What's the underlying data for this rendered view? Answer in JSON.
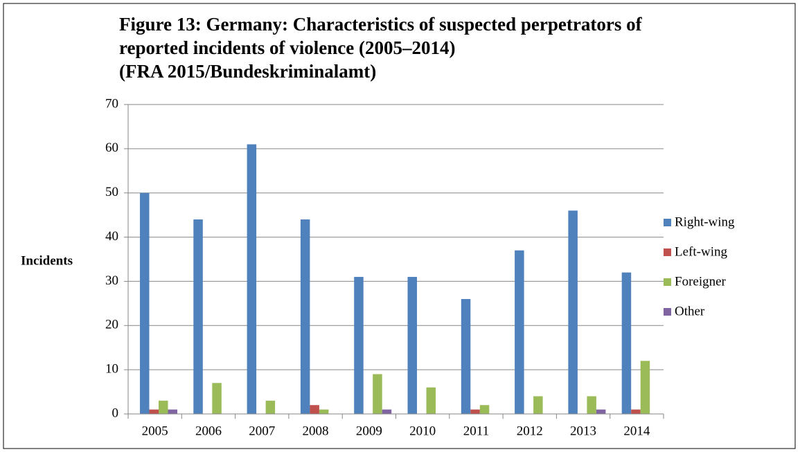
{
  "chart_data": {
    "type": "bar",
    "title": [
      "Figure 13: Germany: Characteristics of suspected perpetrators of",
      "reported incidents of violence (2005–2014)"
    ],
    "subtitle": "(FRA 2015/Bundeskriminalamt)",
    "y_label": "Incidents",
    "categories": [
      "2005",
      "2006",
      "2007",
      "2008",
      "2009",
      "2010",
      "2011",
      "2012",
      "2013",
      "2014"
    ],
    "series": [
      {
        "name": "Right-wing",
        "color": "#4f81bd",
        "values": [
          50,
          44,
          61,
          44,
          31,
          31,
          26,
          37,
          46,
          32
        ]
      },
      {
        "name": "Left-wing",
        "color": "#c0504d",
        "values": [
          1,
          0,
          0,
          2,
          0,
          0,
          1,
          0,
          0,
          1
        ]
      },
      {
        "name": "Foreigner",
        "color": "#9bbb59",
        "values": [
          3,
          7,
          3,
          1,
          9,
          6,
          2,
          4,
          4,
          12
        ]
      },
      {
        "name": "Other",
        "color": "#8064a2",
        "values": [
          1,
          0,
          0,
          0,
          1,
          0,
          0,
          0,
          1,
          0
        ]
      }
    ],
    "ylim": [
      0,
      70
    ],
    "yticks": [
      0,
      10,
      20,
      30,
      40,
      50,
      60,
      70
    ],
    "grid": true,
    "legend": "right"
  }
}
